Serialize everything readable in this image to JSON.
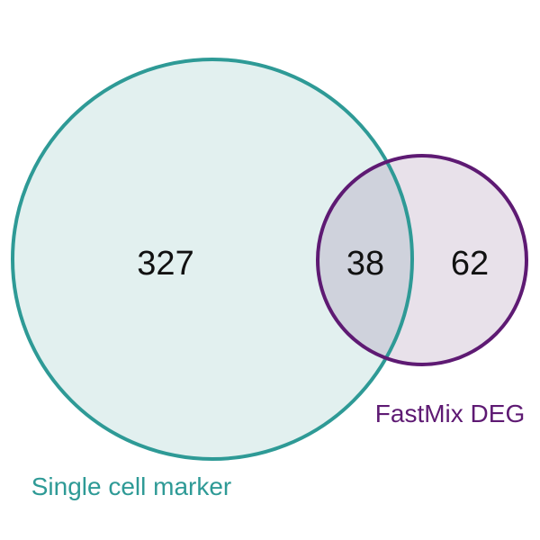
{
  "chart_data": {
    "type": "venn",
    "sets": [
      {
        "name": "Single cell marker",
        "only_count": "327",
        "stroke_color": "#2e9a96",
        "fill_color": "#e2f0ef"
      },
      {
        "name": "FastMix DEG",
        "only_count": "62",
        "stroke_color": "#5e1a73",
        "fill_color": "#e8e1ea"
      }
    ],
    "intersection": {
      "count": "38",
      "fill_color": "#cfd2dc"
    }
  }
}
